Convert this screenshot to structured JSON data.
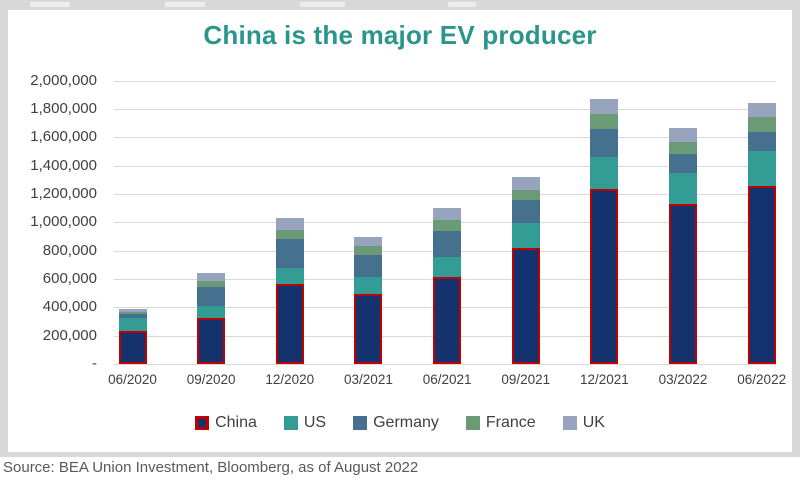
{
  "title": "China is the major EV producer",
  "source_line": "Source: BEA Union Investment, Bloomberg, as of August 2022",
  "colors": {
    "title": "#2a958b",
    "frame_gray": "#d8d8d8",
    "gridline": "#d9d9d9",
    "axis_text": "#404040",
    "source_text": "#595959",
    "china_fill": "#14336e",
    "china_border": "#c00000",
    "us": "#339d95",
    "germany": "#45718f",
    "france": "#6a9b76",
    "uk": "#98a3bd"
  },
  "chart_data": {
    "type": "bar",
    "stacked": true,
    "title": "China is the major EV producer",
    "xlabel": "",
    "ylabel": "",
    "ylim": [
      0,
      2000000
    ],
    "grid": true,
    "legend_position": "bottom",
    "categories": [
      "06/2020",
      "09/2020",
      "12/2020",
      "03/2021",
      "06/2021",
      "09/2021",
      "12/2021",
      "03/2022",
      "06/2022"
    ],
    "series": [
      {
        "name": "China",
        "color": "#14336e",
        "border_color": "#c00000",
        "values": [
          235000,
          325000,
          565000,
          495000,
          615000,
          820000,
          1235000,
          1128000,
          1255000
        ]
      },
      {
        "name": "US",
        "color": "#339d95",
        "values": [
          87000,
          85000,
          113000,
          120000,
          142000,
          172000,
          225000,
          217000,
          249000
        ]
      },
      {
        "name": "Germany",
        "color": "#45718f",
        "values": [
          28000,
          135000,
          205000,
          152000,
          183000,
          166000,
          200000,
          134000,
          134000
        ]
      },
      {
        "name": "France",
        "color": "#6a9b76",
        "values": [
          18000,
          40000,
          61000,
          67000,
          75000,
          70000,
          105000,
          89000,
          101000
        ]
      },
      {
        "name": "UK",
        "color": "#98a3bd",
        "values": [
          17000,
          55000,
          86000,
          64000,
          87000,
          90000,
          108000,
          100000,
          99000
        ]
      }
    ],
    "y_tick_values": [
      0,
      200000,
      400000,
      600000,
      800000,
      1000000,
      1200000,
      1400000,
      1600000,
      1800000,
      2000000
    ],
    "y_tick_labels": [
      "-",
      "200,000",
      "400,000",
      "600,000",
      "800,000",
      "1,000,000",
      "1,200,000",
      "1,400,000",
      "1,600,000",
      "1,800,000",
      "2,000,000"
    ]
  }
}
